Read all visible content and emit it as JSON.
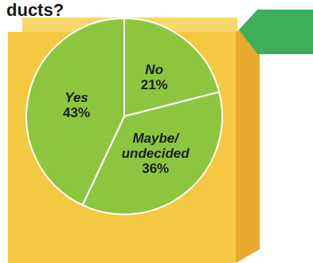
{
  "chart_data": {
    "type": "pie",
    "title": "ducts?",
    "categories": [
      "No",
      "Maybe/undecided",
      "Yes"
    ],
    "values": [
      21,
      36,
      43
    ],
    "value_labels": [
      "21%",
      "36%",
      "43%"
    ],
    "color": "#8cc63f",
    "data_labels": true
  }
}
